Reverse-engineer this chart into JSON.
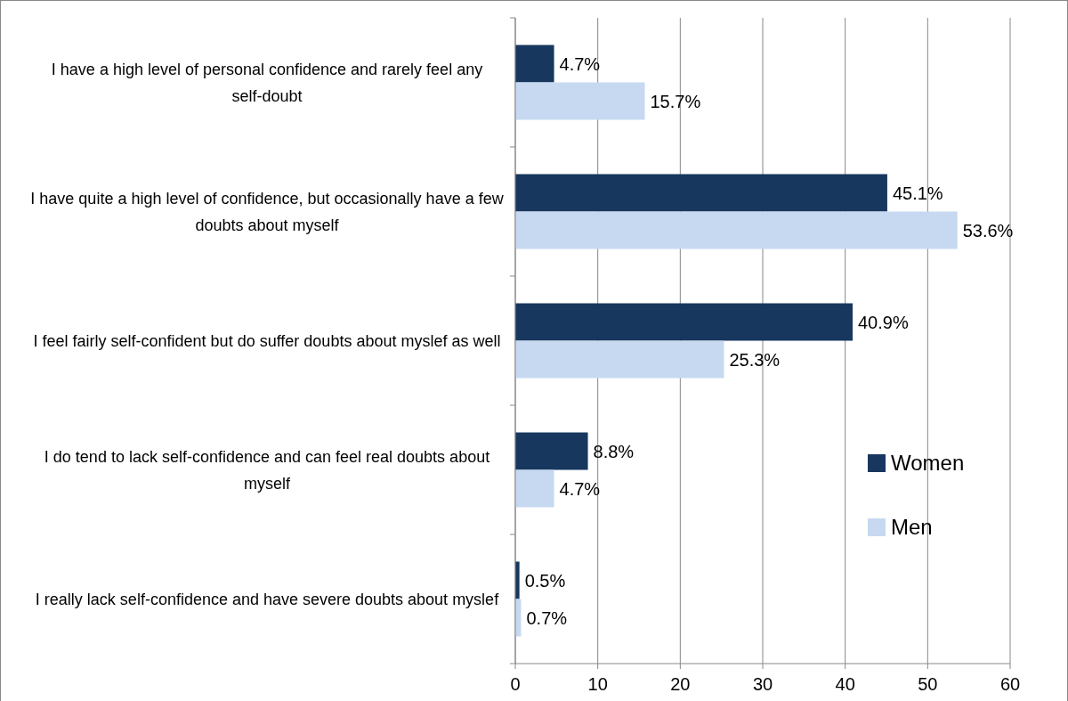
{
  "chart_data": {
    "type": "bar",
    "orientation": "horizontal",
    "categories": [
      "I have a high level of personal confidence and rarely feel any self-doubt",
      "I have quite a high level of confidence, but occasionally have a few doubts about myself",
      "I feel fairly self-confident but do suffer doubts about myslef as well",
      "I do tend to lack self-confidence and can feel real doubts about myself",
      "I really lack self-confidence and have severe doubts about myslef"
    ],
    "series": [
      {
        "name": "Women",
        "color": "#17375e",
        "values": [
          4.7,
          45.1,
          40.9,
          8.8,
          0.5
        ],
        "value_labels": [
          "4.7%",
          "45.1%",
          "40.9%",
          "8.8%",
          "0.5%"
        ]
      },
      {
        "name": "Men",
        "color": "#c6d9f1",
        "values": [
          15.7,
          53.6,
          25.3,
          4.7,
          0.7
        ],
        "value_labels": [
          "15.7%",
          "53.6%",
          "25.3%",
          "4.7%",
          "0.7%"
        ]
      }
    ],
    "xlim": [
      0,
      60
    ],
    "xticks": [
      0,
      10,
      20,
      30,
      40,
      50,
      60
    ],
    "grid": "x",
    "legend": "right"
  }
}
